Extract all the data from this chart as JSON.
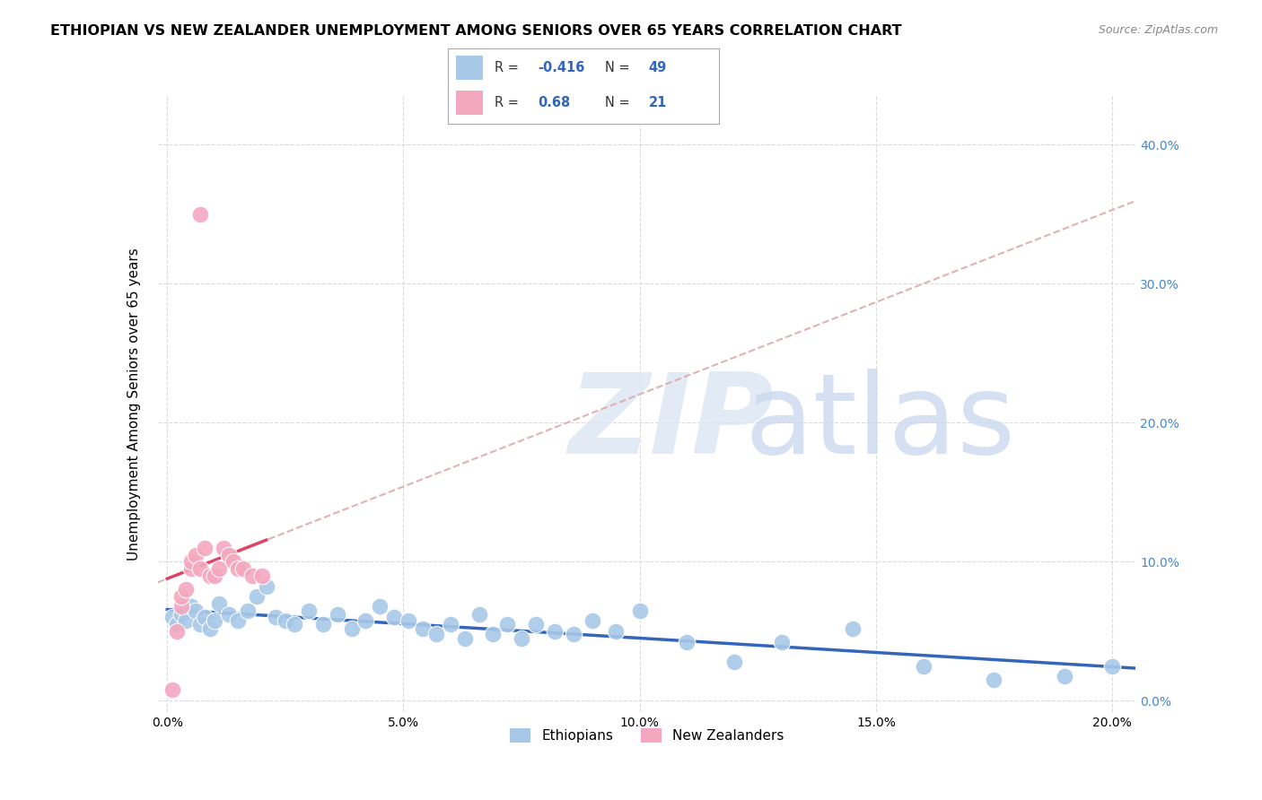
{
  "title": "ETHIOPIAN VS NEW ZEALANDER UNEMPLOYMENT AMONG SENIORS OVER 65 YEARS CORRELATION CHART",
  "source": "Source: ZipAtlas.com",
  "xlabel": "",
  "ylabel": "Unemployment Among Seniors over 65 years",
  "xlim": [
    -0.002,
    0.205
  ],
  "ylim": [
    -0.008,
    0.435
  ],
  "xticks": [
    0.0,
    0.05,
    0.1,
    0.15,
    0.2
  ],
  "yticks": [
    0.0,
    0.1,
    0.2,
    0.3,
    0.4
  ],
  "background_color": "#ffffff",
  "grid_color": "#cccccc",
  "ethiopian_color": "#a8c8e8",
  "nz_color": "#f4a8c0",
  "ethiopian_line_color": "#3366bb",
  "nz_line_color": "#dd4466",
  "nz_dash_color": "#ddaaaa",
  "legend_eth_color": "#a8c8e8",
  "legend_nz_color": "#f4a8c0",
  "r_eth": -0.416,
  "n_eth": 49,
  "r_nz": 0.68,
  "n_nz": 21,
  "ethiopian_x": [
    0.001,
    0.002,
    0.003,
    0.004,
    0.005,
    0.006,
    0.007,
    0.008,
    0.009,
    0.01,
    0.011,
    0.013,
    0.015,
    0.017,
    0.019,
    0.021,
    0.023,
    0.025,
    0.027,
    0.03,
    0.033,
    0.036,
    0.039,
    0.042,
    0.045,
    0.048,
    0.051,
    0.054,
    0.057,
    0.06,
    0.063,
    0.066,
    0.069,
    0.072,
    0.075,
    0.078,
    0.082,
    0.086,
    0.09,
    0.095,
    0.1,
    0.11,
    0.12,
    0.13,
    0.145,
    0.16,
    0.175,
    0.19,
    0.2
  ],
  "ethiopian_y": [
    0.06,
    0.055,
    0.062,
    0.058,
    0.068,
    0.065,
    0.055,
    0.06,
    0.052,
    0.058,
    0.07,
    0.062,
    0.058,
    0.065,
    0.075,
    0.082,
    0.06,
    0.058,
    0.055,
    0.065,
    0.055,
    0.062,
    0.052,
    0.058,
    0.068,
    0.06,
    0.058,
    0.052,
    0.048,
    0.055,
    0.045,
    0.062,
    0.048,
    0.055,
    0.045,
    0.055,
    0.05,
    0.048,
    0.058,
    0.05,
    0.065,
    0.042,
    0.028,
    0.042,
    0.052,
    0.025,
    0.015,
    0.018,
    0.025
  ],
  "nz_x": [
    0.001,
    0.002,
    0.003,
    0.003,
    0.004,
    0.005,
    0.005,
    0.006,
    0.007,
    0.008,
    0.009,
    0.01,
    0.011,
    0.012,
    0.013,
    0.014,
    0.015,
    0.016,
    0.018,
    0.02,
    0.007
  ],
  "nz_y": [
    0.008,
    0.05,
    0.068,
    0.075,
    0.08,
    0.095,
    0.1,
    0.105,
    0.095,
    0.11,
    0.09,
    0.09,
    0.095,
    0.11,
    0.105,
    0.1,
    0.095,
    0.095,
    0.09,
    0.09,
    0.35
  ]
}
